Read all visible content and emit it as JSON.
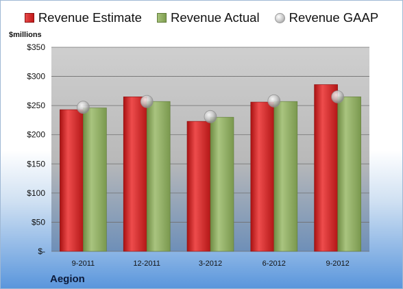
{
  "legend": {
    "estimate_label": "Revenue Estimate",
    "actual_label": "Revenue Actual",
    "gaap_label": "Revenue GAAP"
  },
  "company": "Aegion",
  "colors": {
    "estimate": "#cc2222",
    "actual": "#8faa62",
    "gaap": "#c8c8c8"
  },
  "chart_data": {
    "type": "bar",
    "categories": [
      "9-2011",
      "12-2011",
      "3-2012",
      "6-2012",
      "9-2012"
    ],
    "series": [
      {
        "name": "Revenue Estimate",
        "values": [
          243,
          265,
          223,
          256,
          286
        ]
      },
      {
        "name": "Revenue Actual",
        "values": [
          246,
          257,
          230,
          257,
          265
        ]
      },
      {
        "name": "Revenue GAAP",
        "values": [
          247,
          257,
          231,
          258,
          265
        ]
      }
    ],
    "ylabel": "$millions",
    "ylim": [
      0,
      350
    ],
    "yticks": [
      0,
      50,
      100,
      150,
      200,
      250,
      300,
      350
    ],
    "ytick_labels": [
      "$-",
      "$50",
      "$100",
      "$150",
      "$200",
      "$250",
      "$300",
      "$350"
    ],
    "grid": true,
    "legend_position": "top"
  }
}
